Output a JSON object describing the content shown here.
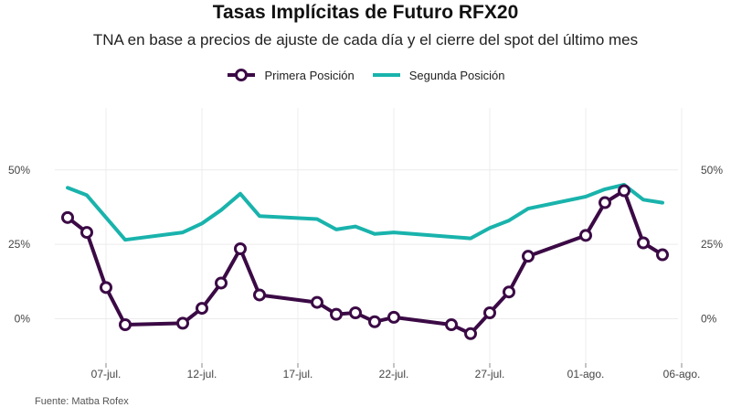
{
  "chart_data": {
    "type": "line",
    "title": "Tasas Implícitas de Futuro RFX20",
    "subtitle": "TNA en base a precios de ajuste de cada día y el cierre del spot del último mes",
    "caption": "Fuente: Matba Rofex",
    "xlabel": "",
    "ylabel": "",
    "x_ticks": [
      "07-jul.",
      "12-jul.",
      "17-jul.",
      "22-jul.",
      "27-jul.",
      "01-ago.",
      "06-ago."
    ],
    "y_ticks": [
      "0%",
      "25%",
      "50%"
    ],
    "ylim": [
      -15,
      68
    ],
    "grid": true,
    "legend_position": "top",
    "series": [
      {
        "name": "Primera Posición",
        "color": "#3b0a45",
        "markers": true,
        "points": [
          {
            "x": "2023-07-05",
            "y": 34
          },
          {
            "x": "2023-07-06",
            "y": 29
          },
          {
            "x": "2023-07-07",
            "y": 10.5
          },
          {
            "x": "2023-07-08",
            "y": -2
          },
          {
            "x": "2023-07-11",
            "y": -1.5
          },
          {
            "x": "2023-07-12",
            "y": 3.5
          },
          {
            "x": "2023-07-13",
            "y": 12
          },
          {
            "x": "2023-07-14",
            "y": 23.5
          },
          {
            "x": "2023-07-15",
            "y": 8
          },
          {
            "x": "2023-07-18",
            "y": 5.5
          },
          {
            "x": "2023-07-19",
            "y": 1.5
          },
          {
            "x": "2023-07-20",
            "y": 2
          },
          {
            "x": "2023-07-21",
            "y": -1
          },
          {
            "x": "2023-07-22",
            "y": 0.5
          },
          {
            "x": "2023-07-25",
            "y": -2
          },
          {
            "x": "2023-07-26",
            "y": -5
          },
          {
            "x": "2023-07-27",
            "y": 2
          },
          {
            "x": "2023-07-28",
            "y": 9
          },
          {
            "x": "2023-07-29",
            "y": 21
          },
          {
            "x": "2023-08-01",
            "y": 28
          },
          {
            "x": "2023-08-02",
            "y": 39
          },
          {
            "x": "2023-08-03",
            "y": 43
          },
          {
            "x": "2023-08-04",
            "y": 25.5
          },
          {
            "x": "2023-08-05",
            "y": 21.5
          }
        ]
      },
      {
        "name": "Segunda Posición",
        "color": "#19b3ac",
        "markers": false,
        "points": [
          {
            "x": "2023-07-05",
            "y": 44
          },
          {
            "x": "2023-07-06",
            "y": 41.5
          },
          {
            "x": "2023-07-07",
            "y": 34
          },
          {
            "x": "2023-07-08",
            "y": 26.5
          },
          {
            "x": "2023-07-11",
            "y": 29
          },
          {
            "x": "2023-07-12",
            "y": 32
          },
          {
            "x": "2023-07-13",
            "y": 36.5
          },
          {
            "x": "2023-07-14",
            "y": 42
          },
          {
            "x": "2023-07-15",
            "y": 34.5
          },
          {
            "x": "2023-07-18",
            "y": 33.5
          },
          {
            "x": "2023-07-19",
            "y": 30
          },
          {
            "x": "2023-07-20",
            "y": 31
          },
          {
            "x": "2023-07-21",
            "y": 28.5
          },
          {
            "x": "2023-07-22",
            "y": 29
          },
          {
            "x": "2023-07-25",
            "y": 27.5
          },
          {
            "x": "2023-07-26",
            "y": 27
          },
          {
            "x": "2023-07-27",
            "y": 30.5
          },
          {
            "x": "2023-07-28",
            "y": 33
          },
          {
            "x": "2023-07-29",
            "y": 37
          },
          {
            "x": "2023-08-01",
            "y": 41
          },
          {
            "x": "2023-08-02",
            "y": 43.5
          },
          {
            "x": "2023-08-03",
            "y": 45
          },
          {
            "x": "2023-08-04",
            "y": 40
          },
          {
            "x": "2023-08-05",
            "y": 39
          }
        ]
      }
    ]
  }
}
